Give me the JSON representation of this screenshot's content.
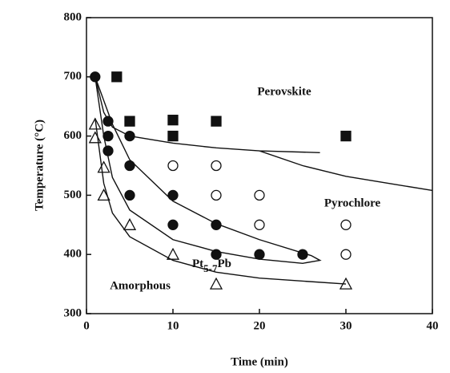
{
  "chart_data": {
    "type": "scatter",
    "x_label": "Time (min)",
    "y_label": "Temperature (°C)",
    "xlim": [
      0,
      40
    ],
    "xticks": [
      0,
      10,
      20,
      30,
      40
    ],
    "ylim": [
      300,
      800
    ],
    "yticks": [
      300,
      400,
      500,
      600,
      700,
      800
    ],
    "annotations": [
      "Perovskite",
      "Pyrochlore",
      "Amorphous",
      {
        "text": "Pt",
        "sub": "5-7",
        "tail": "Pb"
      }
    ],
    "series": [
      {
        "marker": "square-filled",
        "color": "#111",
        "x": [
          3.5,
          5,
          10,
          10,
          15,
          30
        ],
        "values": [
          700,
          625,
          627,
          600,
          625,
          600
        ]
      },
      {
        "marker": "circle-filled",
        "color": "#111",
        "x": [
          1,
          2.5,
          2.5,
          2.5,
          5,
          5,
          5,
          10,
          10,
          15,
          15,
          20,
          25
        ],
        "values": [
          700,
          625,
          600,
          575,
          600,
          550,
          500,
          500,
          450,
          450,
          400,
          400,
          400
        ]
      },
      {
        "marker": "circle-open",
        "color": "#111",
        "x": [
          10,
          15,
          15,
          20,
          20,
          30,
          30
        ],
        "values": [
          550,
          550,
          500,
          500,
          450,
          450,
          400
        ]
      },
      {
        "marker": "triangle-open",
        "color": "#111",
        "x": [
          1,
          1,
          2,
          2,
          5,
          10,
          15,
          30
        ],
        "values": [
          620,
          597,
          547,
          500,
          450,
          400,
          350,
          350
        ]
      },
      {
        "marker": "line",
        "color": "#111",
        "x": [
          1,
          2,
          3,
          5,
          10,
          15,
          20,
          27
        ],
        "values": [
          700,
          640,
          615,
          600,
          588,
          580,
          575,
          572
        ]
      },
      {
        "marker": "line",
        "color": "#111",
        "x": [
          20,
          25,
          30,
          35,
          40
        ],
        "values": [
          575,
          550,
          532,
          520,
          508
        ]
      },
      {
        "marker": "line",
        "color": "#111",
        "x": [
          1,
          2,
          3,
          5,
          10,
          15,
          20,
          25,
          27,
          26,
          20,
          15,
          10,
          5,
          3,
          2,
          1
        ],
        "values": [
          700,
          600,
          530,
          475,
          425,
          405,
          392,
          385,
          390,
          398,
          425,
          452,
          490,
          560,
          620,
          660,
          700
        ]
      },
      {
        "marker": "line",
        "color": "#111",
        "x": [
          1,
          2,
          3,
          5,
          10,
          15,
          20,
          30
        ],
        "values": [
          630,
          520,
          470,
          430,
          390,
          370,
          360,
          350
        ]
      }
    ]
  }
}
